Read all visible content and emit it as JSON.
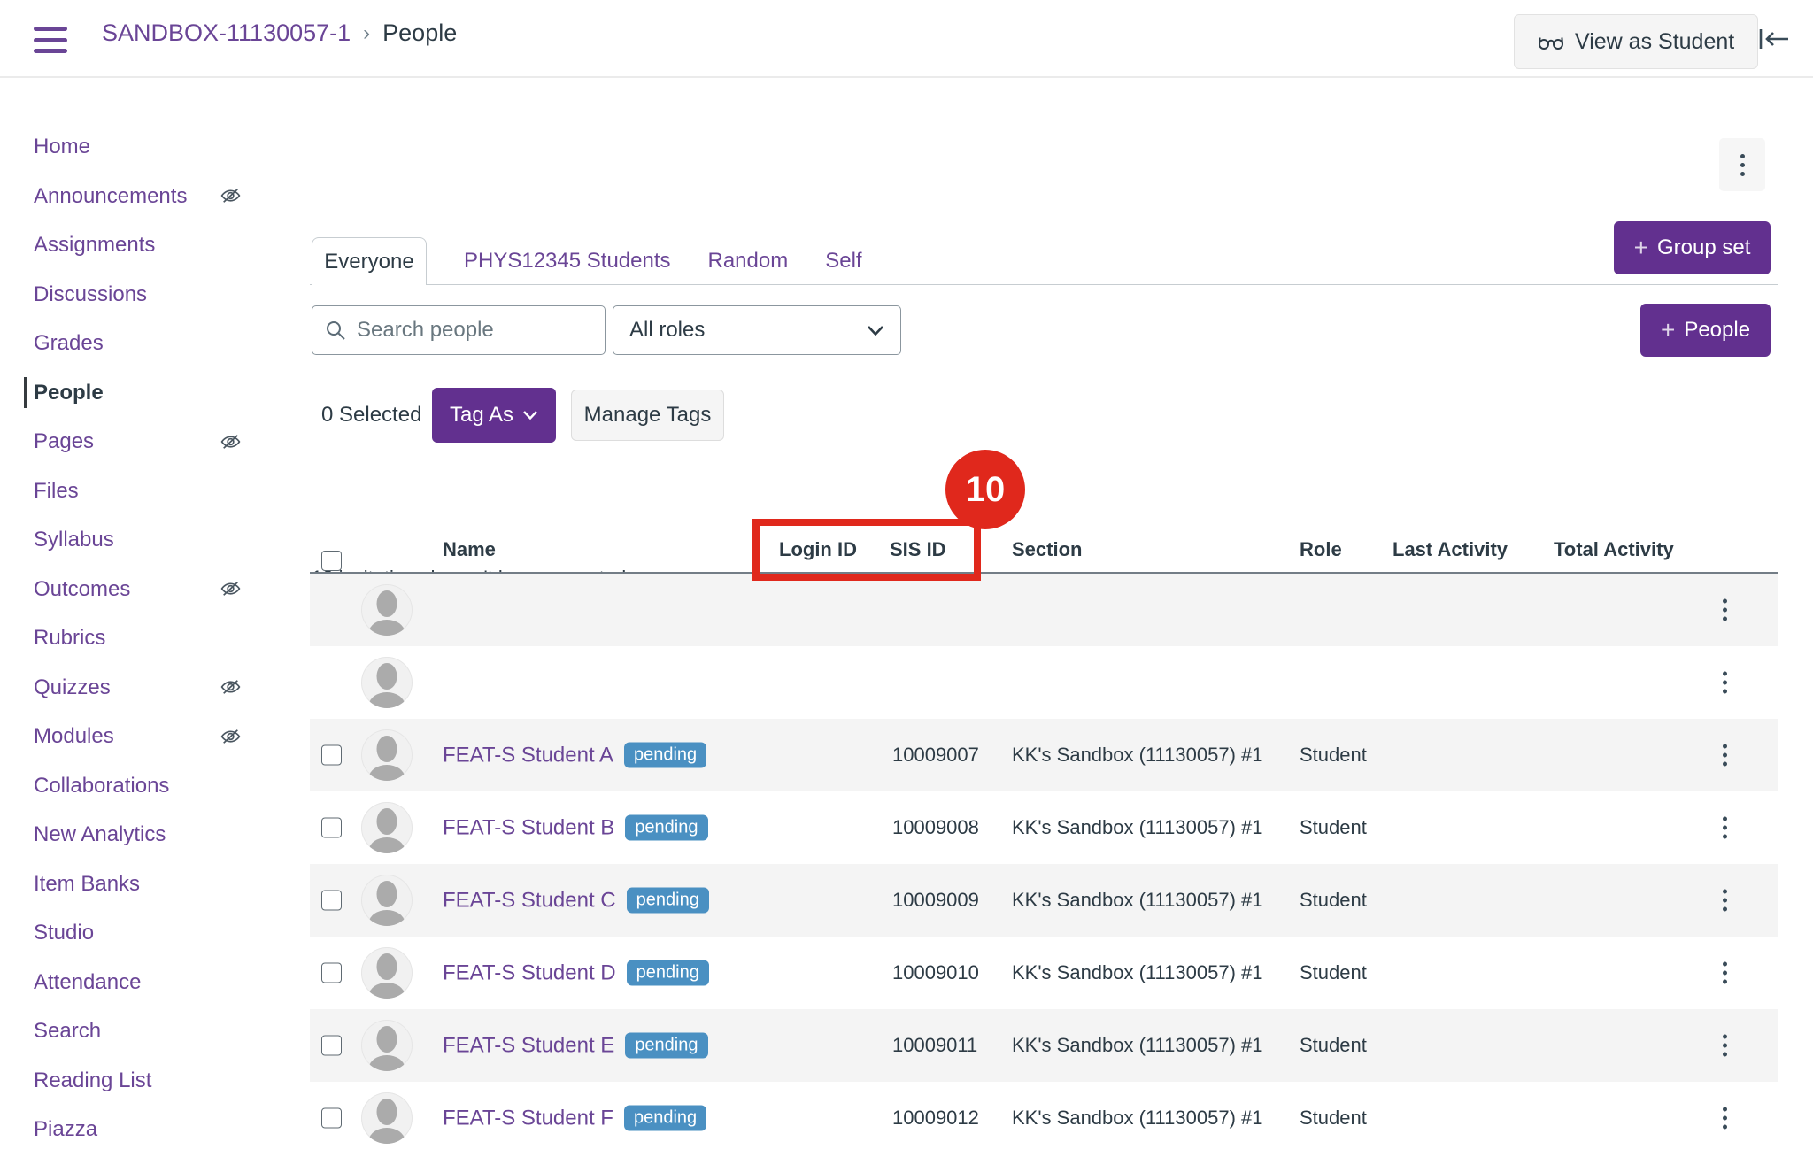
{
  "header": {
    "breadcrumb": {
      "course": "SANDBOX-11130057-1",
      "separator": "›",
      "page": "People"
    },
    "view_as_student_label": "View as Student"
  },
  "sidebar": {
    "items": [
      {
        "label": "Home",
        "hidden_icon": false,
        "active": false
      },
      {
        "label": "Announcements",
        "hidden_icon": true,
        "active": false
      },
      {
        "label": "Assignments",
        "hidden_icon": false,
        "active": false
      },
      {
        "label": "Discussions",
        "hidden_icon": false,
        "active": false
      },
      {
        "label": "Grades",
        "hidden_icon": false,
        "active": false
      },
      {
        "label": "People",
        "hidden_icon": false,
        "active": true
      },
      {
        "label": "Pages",
        "hidden_icon": true,
        "active": false
      },
      {
        "label": "Files",
        "hidden_icon": false,
        "active": false
      },
      {
        "label": "Syllabus",
        "hidden_icon": false,
        "active": false
      },
      {
        "label": "Outcomes",
        "hidden_icon": true,
        "active": false
      },
      {
        "label": "Rubrics",
        "hidden_icon": false,
        "active": false
      },
      {
        "label": "Quizzes",
        "hidden_icon": true,
        "active": false
      },
      {
        "label": "Modules",
        "hidden_icon": true,
        "active": false
      },
      {
        "label": "Collaborations",
        "hidden_icon": false,
        "active": false
      },
      {
        "label": "New Analytics",
        "hidden_icon": false,
        "active": false
      },
      {
        "label": "Item Banks",
        "hidden_icon": false,
        "active": false
      },
      {
        "label": "Studio",
        "hidden_icon": false,
        "active": false
      },
      {
        "label": "Attendance",
        "hidden_icon": false,
        "active": false
      },
      {
        "label": "Search",
        "hidden_icon": false,
        "active": false
      },
      {
        "label": "Reading List",
        "hidden_icon": false,
        "active": false
      },
      {
        "label": "Piazza",
        "hidden_icon": false,
        "active": false
      }
    ]
  },
  "toolbar": {
    "tabs": [
      {
        "label": "Everyone",
        "active": true
      },
      {
        "label": "PHYS12345 Students",
        "active": false
      },
      {
        "label": "Random",
        "active": false
      },
      {
        "label": "Self",
        "active": false
      }
    ],
    "search_placeholder": "Search people",
    "roles_filter_value": "All roles",
    "plus": "+",
    "group_set_label": "Group set",
    "people_label": "People",
    "selected_count": "0 Selected",
    "tag_as_label": "Tag As",
    "manage_tags_label": "Manage Tags",
    "invitations_notice": "12 invitations haven't been accepted."
  },
  "annotation": {
    "step_badge": "10"
  },
  "table": {
    "columns": {
      "name": "Name",
      "login_id": "Login ID",
      "sis_id": "SIS ID",
      "section": "Section",
      "role": "Role",
      "last_activity": "Last Activity",
      "total_activity": "Total Activity"
    },
    "rows": [
      {
        "name": "",
        "status": "",
        "login_id": "",
        "sis_id": "",
        "section": "",
        "role": "",
        "has_checkbox": false
      },
      {
        "name": "",
        "status": "",
        "login_id": "",
        "sis_id": "",
        "section": "",
        "role": "",
        "has_checkbox": false
      },
      {
        "name": "FEAT-S Student A",
        "status": "pending",
        "login_id": "",
        "sis_id": "10009007",
        "section": "KK's Sandbox (11130057) #1",
        "role": "Student",
        "has_checkbox": true
      },
      {
        "name": "FEAT-S Student B",
        "status": "pending",
        "login_id": "",
        "sis_id": "10009008",
        "section": "KK's Sandbox (11130057) #1",
        "role": "Student",
        "has_checkbox": true
      },
      {
        "name": "FEAT-S Student C",
        "status": "pending",
        "login_id": "",
        "sis_id": "10009009",
        "section": "KK's Sandbox (11130057) #1",
        "role": "Student",
        "has_checkbox": true
      },
      {
        "name": "FEAT-S Student D",
        "status": "pending",
        "login_id": "",
        "sis_id": "10009010",
        "section": "KK's Sandbox (11130057) #1",
        "role": "Student",
        "has_checkbox": true
      },
      {
        "name": "FEAT-S Student E",
        "status": "pending",
        "login_id": "",
        "sis_id": "10009011",
        "section": "KK's Sandbox (11130057) #1",
        "role": "Student",
        "has_checkbox": true
      },
      {
        "name": "FEAT-S Student F",
        "status": "pending",
        "login_id": "",
        "sis_id": "10009012",
        "section": "KK's Sandbox (11130057) #1",
        "role": "Student",
        "has_checkbox": true
      }
    ]
  },
  "colors": {
    "brand_purple": "#6A4596",
    "button_purple": "#62308F",
    "ink": "#2D3B45",
    "pending_blue": "#4A90C2",
    "annotation_red": "#E0281C",
    "row_stripe": "#F4F4F4"
  }
}
